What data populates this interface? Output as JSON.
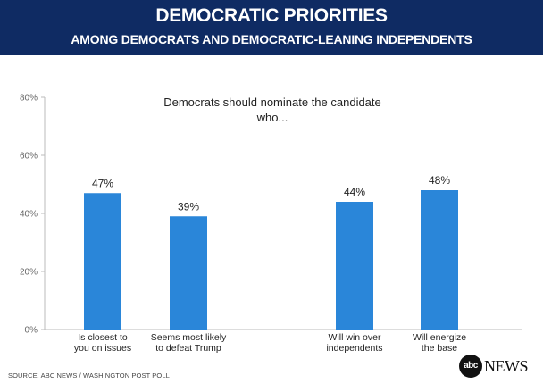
{
  "header": {
    "title": "DEMOCRATIC PRIORITIES",
    "subtitle": "AMONG DEMOCRATS AND DEMOCRATIC-LEANING INDEPENDENTS"
  },
  "chart_data": {
    "type": "bar",
    "title": "DEMOCRATIC PRIORITIES",
    "subtitle": "AMONG DEMOCRATS AND DEMOCRATIC-LEANING INDEPENDENTS",
    "annotation": "Democrats should nominate the candidate who...",
    "categories": [
      [
        "Is closest  to",
        "you on issues"
      ],
      [
        "Seems most likely",
        "to defeat Trump"
      ],
      [
        "Will win over",
        "independents"
      ],
      [
        "Will energize",
        "the base"
      ]
    ],
    "values": [
      47,
      39,
      44,
      48
    ],
    "value_labels": [
      "47%",
      "39%",
      "44%",
      "48%"
    ],
    "ylim": [
      0,
      80
    ],
    "yticks": [
      0,
      20,
      40,
      60,
      80
    ],
    "ytick_labels": [
      "0%",
      "20%",
      "40%",
      "60%",
      "80%"
    ],
    "xlabel": "",
    "ylabel": "",
    "grid": false,
    "bar_color": "#2a86d9"
  },
  "footer": {
    "source": "SOURCE: ABC NEWS / WASHINGTON POST POLL",
    "logo_mark": "abc",
    "logo_word": "NEWS"
  },
  "colors": {
    "header_bg": "#0f2b63",
    "bar": "#2a86d9",
    "axis": "#bbbbbb"
  }
}
